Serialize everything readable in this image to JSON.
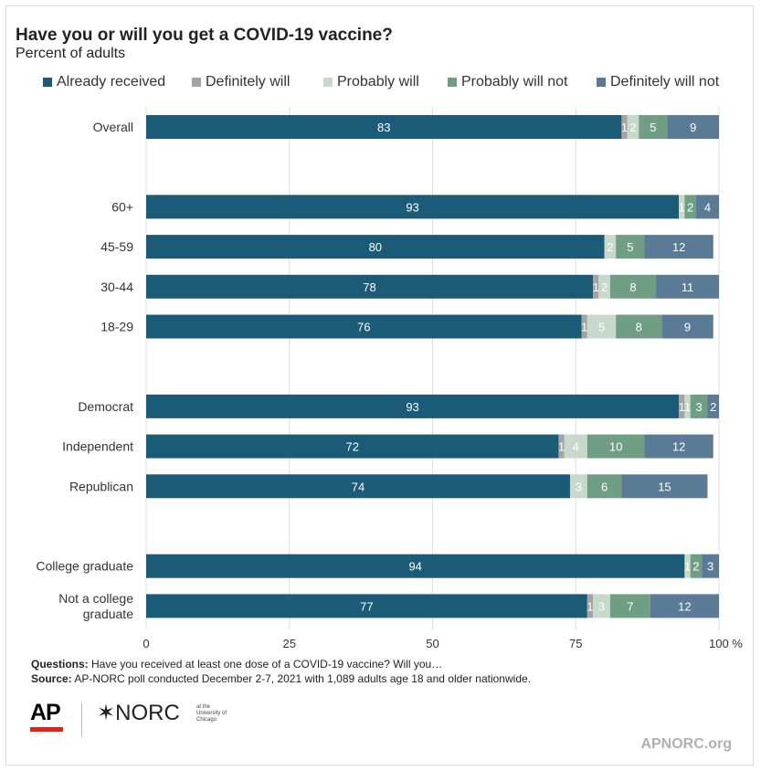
{
  "title": "Have you or will you get a COVID-19 vaccine?",
  "subtitle": "Percent of adults",
  "notes": {
    "questions_label": "Questions:",
    "questions_text": "Have you received at least one dose of a COVID-19 vaccine? Will you…",
    "source_label": "Source:",
    "source_text": "AP-NORC poll conducted December 2-7, 2021 with 1,089 adults age 18 and older nationwide."
  },
  "logos": {
    "ap": "AP",
    "norc": "NORC",
    "norc_tagline": "at the University of Chicago",
    "site": "APNORC.org"
  },
  "colors": {
    "already_received": "#1b5b78",
    "definitely_will": "#a3a3a3",
    "probably_will": "#c9d8cd",
    "probably_will_not": "#6f9e84",
    "definitely_will_not": "#5b7a96",
    "grid": "#dddddd"
  },
  "chart_data": {
    "type": "bar",
    "orientation": "horizontal",
    "stacked": true,
    "title": "Have you or will you get a COVID-19 vaccine?",
    "subtitle": "Percent of adults",
    "categories": [
      "Overall",
      "60+",
      "45-59",
      "30-44",
      "18-29",
      "Democrat",
      "Independent",
      "Republican",
      "College graduate",
      "Not a college graduate"
    ],
    "groups": [
      [
        0
      ],
      [
        1,
        2,
        3,
        4
      ],
      [
        5,
        6,
        7
      ],
      [
        8,
        9
      ]
    ],
    "series": [
      {
        "name": "Already received",
        "values": [
          83,
          93,
          80,
          78,
          76,
          93,
          72,
          74,
          94,
          77
        ]
      },
      {
        "name": "Definitely will",
        "values": [
          1,
          0,
          0,
          1,
          1,
          1,
          1,
          0,
          0,
          1
        ]
      },
      {
        "name": "Probably will",
        "values": [
          2,
          1,
          2,
          2,
          5,
          1,
          4,
          3,
          1,
          3
        ]
      },
      {
        "name": "Probably will not",
        "values": [
          5,
          2,
          5,
          8,
          8,
          3,
          10,
          6,
          2,
          7
        ]
      },
      {
        "name": "Definitely will not",
        "values": [
          9,
          4,
          12,
          11,
          9,
          2,
          12,
          15,
          3,
          12
        ]
      }
    ],
    "xlim": [
      0,
      100
    ],
    "xticks": [
      "0",
      "25",
      "50",
      "75",
      "100 %"
    ],
    "xtick_values": [
      0,
      25,
      50,
      75,
      100
    ],
    "grid": true,
    "legend_position": "top"
  }
}
